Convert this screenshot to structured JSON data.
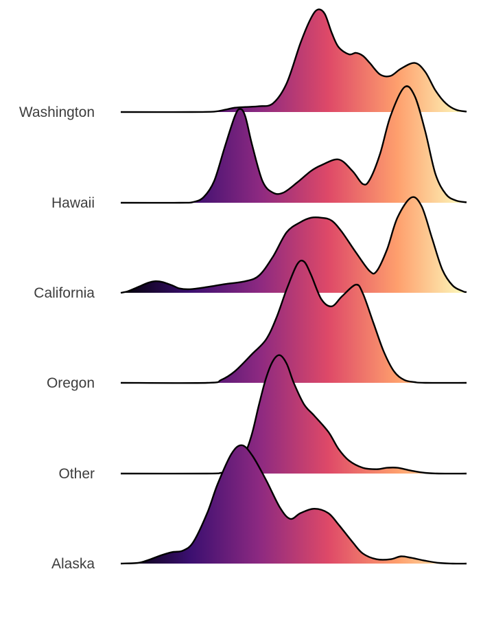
{
  "chart_data": {
    "type": "ridgeline",
    "title": "",
    "xlabel": "",
    "ylabel": "",
    "grid": false,
    "legend": "none",
    "color_scale": "magma",
    "colors": [
      "#000004",
      "#3b0f70",
      "#8c2981",
      "#de4968",
      "#fe9f6d",
      "#fcfdbf"
    ],
    "x_range": [
      0,
      100
    ],
    "density_max": 100,
    "categories": [
      "Washington",
      "Hawaii",
      "California",
      "Oregon",
      "Other",
      "Alaska"
    ],
    "series": [
      {
        "name": "Washington",
        "points": [
          [
            0,
            0
          ],
          [
            20,
            0
          ],
          [
            27,
            0.3
          ],
          [
            30,
            1.5
          ],
          [
            33,
            3
          ],
          [
            36,
            3.5
          ],
          [
            40,
            4
          ],
          [
            44,
            6
          ],
          [
            48,
            20
          ],
          [
            52,
            48
          ],
          [
            55,
            65
          ],
          [
            57,
            71
          ],
          [
            59,
            68
          ],
          [
            61,
            55
          ],
          [
            63,
            45
          ],
          [
            66,
            40
          ],
          [
            68,
            41
          ],
          [
            70,
            39
          ],
          [
            72,
            34
          ],
          [
            75,
            26
          ],
          [
            78,
            25
          ],
          [
            81,
            30
          ],
          [
            85,
            34
          ],
          [
            88,
            28
          ],
          [
            91,
            15
          ],
          [
            94,
            6
          ],
          [
            97,
            1.5
          ],
          [
            100,
            0.3
          ]
        ]
      },
      {
        "name": "Hawaii",
        "points": [
          [
            0,
            0
          ],
          [
            17,
            0
          ],
          [
            21,
            0.5
          ],
          [
            24,
            4
          ],
          [
            27,
            15
          ],
          [
            30,
            38
          ],
          [
            33,
            60
          ],
          [
            34.5,
            65
          ],
          [
            36,
            60
          ],
          [
            38,
            40
          ],
          [
            41,
            15
          ],
          [
            44,
            7
          ],
          [
            47,
            7
          ],
          [
            51,
            14
          ],
          [
            55,
            22
          ],
          [
            58,
            26
          ],
          [
            63,
            30
          ],
          [
            67,
            22
          ],
          [
            70,
            13
          ],
          [
            72,
            16
          ],
          [
            75,
            34
          ],
          [
            78,
            60
          ],
          [
            82,
            80
          ],
          [
            85,
            74
          ],
          [
            88,
            50
          ],
          [
            91,
            20
          ],
          [
            94,
            6
          ],
          [
            97,
            1.5
          ],
          [
            100,
            0.3
          ]
        ]
      },
      {
        "name": "California",
        "points": [
          [
            0,
            0
          ],
          [
            2,
            1
          ],
          [
            5,
            4
          ],
          [
            8,
            7
          ],
          [
            10,
            8
          ],
          [
            12,
            7.5
          ],
          [
            15,
            5
          ],
          [
            17,
            3
          ],
          [
            20,
            2.5
          ],
          [
            25,
            4
          ],
          [
            30,
            6
          ],
          [
            36,
            8
          ],
          [
            40,
            12
          ],
          [
            44,
            25
          ],
          [
            48,
            42
          ],
          [
            52,
            49
          ],
          [
            55,
            52
          ],
          [
            58,
            52
          ],
          [
            61,
            50
          ],
          [
            64,
            42
          ],
          [
            68,
            28
          ],
          [
            72,
            15
          ],
          [
            74,
            15
          ],
          [
            77,
            30
          ],
          [
            80,
            52
          ],
          [
            84,
            66
          ],
          [
            87,
            60
          ],
          [
            90,
            38
          ],
          [
            93,
            16
          ],
          [
            96,
            5
          ],
          [
            99,
            1
          ],
          [
            100,
            0.5
          ]
        ]
      },
      {
        "name": "Oregon",
        "points": [
          [
            0,
            0
          ],
          [
            25,
            0
          ],
          [
            29,
            2
          ],
          [
            33,
            8
          ],
          [
            38,
            20
          ],
          [
            42,
            30
          ],
          [
            45,
            45
          ],
          [
            48,
            65
          ],
          [
            51,
            82
          ],
          [
            53,
            84
          ],
          [
            55,
            75
          ],
          [
            58,
            58
          ],
          [
            61,
            53
          ],
          [
            64,
            60
          ],
          [
            68,
            68
          ],
          [
            70,
            62
          ],
          [
            73,
            42
          ],
          [
            76,
            22
          ],
          [
            79,
            8
          ],
          [
            82,
            2
          ],
          [
            85,
            0.5
          ],
          [
            88,
            0
          ],
          [
            100,
            0
          ]
        ]
      },
      {
        "name": "Other",
        "points": [
          [
            0,
            0
          ],
          [
            25,
            0
          ],
          [
            29,
            0.5
          ],
          [
            32,
            2
          ],
          [
            34,
            6
          ],
          [
            36,
            14
          ],
          [
            38,
            28
          ],
          [
            40,
            48
          ],
          [
            42,
            66
          ],
          [
            44,
            78
          ],
          [
            46,
            82
          ],
          [
            48,
            76
          ],
          [
            50,
            63
          ],
          [
            53,
            48
          ],
          [
            56,
            40
          ],
          [
            60,
            29
          ],
          [
            63,
            17
          ],
          [
            66,
            9
          ],
          [
            70,
            4
          ],
          [
            74,
            3
          ],
          [
            77,
            4
          ],
          [
            80,
            4
          ],
          [
            84,
            2
          ],
          [
            88,
            0.5
          ],
          [
            92,
            0
          ],
          [
            100,
            0
          ]
        ]
      },
      {
        "name": "Alaska",
        "points": [
          [
            0,
            0
          ],
          [
            5,
            0.5
          ],
          [
            8,
            2.5
          ],
          [
            12,
            6
          ],
          [
            15,
            8
          ],
          [
            18,
            9
          ],
          [
            21,
            15
          ],
          [
            25,
            35
          ],
          [
            28,
            55
          ],
          [
            32,
            76
          ],
          [
            35,
            82
          ],
          [
            38,
            75
          ],
          [
            42,
            58
          ],
          [
            46,
            39
          ],
          [
            49,
            31
          ],
          [
            52,
            35
          ],
          [
            56,
            38
          ],
          [
            60,
            35
          ],
          [
            63,
            27
          ],
          [
            67,
            15
          ],
          [
            70,
            7
          ],
          [
            74,
            3
          ],
          [
            78,
            3
          ],
          [
            81,
            5
          ],
          [
            84,
            4
          ],
          [
            88,
            2
          ],
          [
            92,
            0.5
          ],
          [
            96,
            0
          ],
          [
            100,
            0
          ]
        ]
      }
    ]
  }
}
